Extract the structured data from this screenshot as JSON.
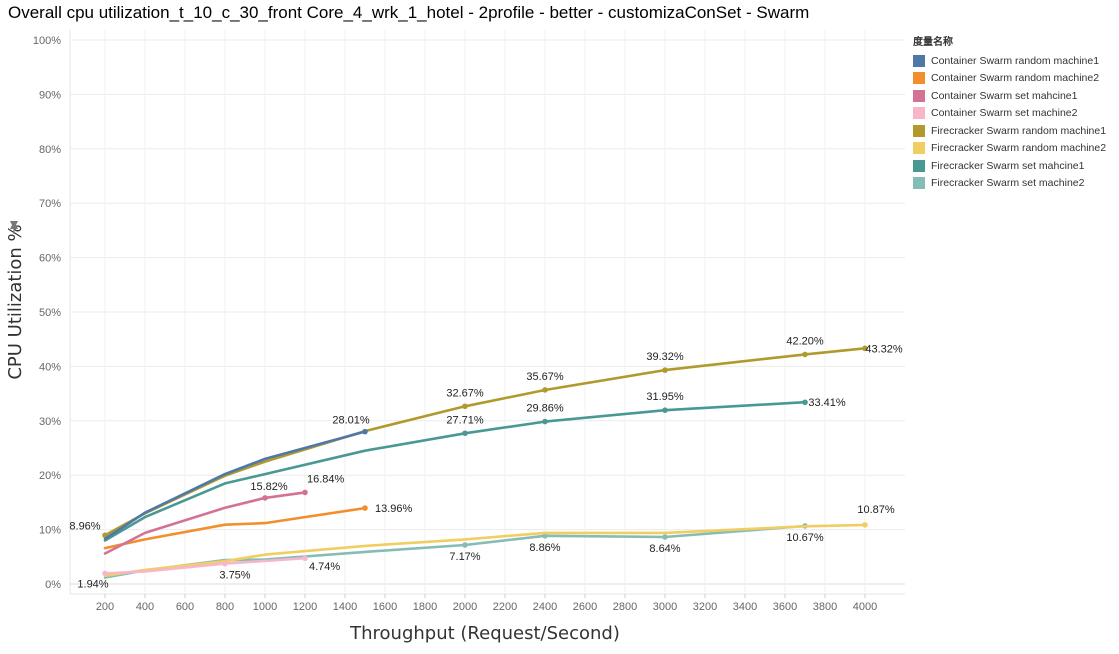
{
  "chart_data": {
    "type": "line",
    "title": "Overall cpu utilization_t_10_c_30_front Core_4_wrk_1_hotel - 2profile - better - customizaConSet - Swarm",
    "xlabel": "Throughput (Request/Second)",
    "ylabel": "CPU Utilization %",
    "ylabel_icon": "pin-icon",
    "xlim": [
      0,
      4200
    ],
    "ylim": [
      0,
      100
    ],
    "xticks": [
      200,
      400,
      600,
      800,
      1000,
      1200,
      1400,
      1600,
      1800,
      2000,
      2200,
      2400,
      2600,
      2800,
      3000,
      3200,
      3400,
      3600,
      3800,
      4000
    ],
    "yticks": [
      0,
      10,
      20,
      30,
      40,
      50,
      60,
      70,
      80,
      90,
      100
    ],
    "ytick_labels": [
      "0%",
      "10%",
      "20%",
      "30%",
      "40%",
      "50%",
      "60%",
      "70%",
      "80%",
      "90%",
      "100%"
    ],
    "grid": true,
    "legend_title": "度量名称",
    "legend_position": "right",
    "series": [
      {
        "name": "Container Swarm random machine1",
        "color": "#4e79a7",
        "x": [
          200,
          400,
          800,
          1000,
          1500
        ],
        "y": [
          8.3,
          13.1,
          20.2,
          23.0,
          28.01
        ],
        "labels": [
          null,
          null,
          null,
          null,
          "28.01%"
        ]
      },
      {
        "name": "Container Swarm random machine2",
        "color": "#f28e2b",
        "x": [
          200,
          400,
          800,
          1000,
          1500
        ],
        "y": [
          6.6,
          8.2,
          10.9,
          11.2,
          13.96
        ],
        "labels": [
          null,
          null,
          null,
          null,
          "13.96%"
        ]
      },
      {
        "name": "Container Swarm set mahcine1",
        "color": "#d37295",
        "x": [
          200,
          400,
          800,
          1000,
          1200
        ],
        "y": [
          5.6,
          9.4,
          14.0,
          15.82,
          16.84
        ],
        "labels": [
          null,
          null,
          null,
          "15.82%",
          "16.84%"
        ]
      },
      {
        "name": "Container Swarm set machine2",
        "color": "#f7b6c9",
        "x": [
          200,
          400,
          800,
          1200
        ],
        "y": [
          1.94,
          2.3,
          3.75,
          4.74
        ],
        "labels": [
          "1.94%",
          null,
          "3.75%",
          "4.74%"
        ]
      },
      {
        "name": "Firecracker Swarm random machine1",
        "color": "#b19a2d",
        "x": [
          200,
          400,
          800,
          1000,
          1500,
          2000,
          2400,
          3000,
          3700,
          4000
        ],
        "y": [
          8.96,
          13.0,
          19.9,
          22.5,
          28.1,
          32.67,
          35.67,
          39.32,
          42.2,
          43.32
        ],
        "labels": [
          "8.96%",
          null,
          null,
          null,
          null,
          "32.67%",
          "35.67%",
          "39.32%",
          "42.20%",
          "43.32%"
        ]
      },
      {
        "name": "Firecracker Swarm random machine2",
        "color": "#f1ce63",
        "x": [
          200,
          400,
          800,
          1000,
          1500,
          2000,
          2400,
          3000,
          3700,
          4000
        ],
        "y": [
          1.5,
          2.6,
          4.2,
          5.4,
          7.0,
          8.2,
          9.4,
          9.4,
          10.6,
          10.87
        ],
        "labels": [
          null,
          null,
          null,
          null,
          null,
          null,
          null,
          null,
          null,
          "10.87%"
        ]
      },
      {
        "name": "Firecracker Swarm set mahcine1",
        "color": "#499894",
        "x": [
          200,
          400,
          800,
          1000,
          1500,
          2000,
          2400,
          3000,
          3700
        ],
        "y": [
          8.0,
          12.3,
          18.5,
          20.2,
          24.5,
          27.71,
          29.86,
          31.95,
          33.41
        ],
        "labels": [
          null,
          null,
          null,
          null,
          null,
          "27.71%",
          "29.86%",
          "31.95%",
          "33.41%"
        ]
      },
      {
        "name": "Firecracker Swarm set machine2",
        "color": "#86bcb6",
        "x": [
          200,
          400,
          800,
          1000,
          1500,
          2000,
          2400,
          3000,
          3700
        ],
        "y": [
          1.2,
          2.5,
          4.4,
          4.5,
          5.9,
          7.17,
          8.86,
          8.64,
          10.67
        ],
        "labels": [
          null,
          null,
          null,
          null,
          null,
          "7.17%",
          "8.86%",
          "8.64%",
          "10.67%"
        ]
      }
    ]
  }
}
